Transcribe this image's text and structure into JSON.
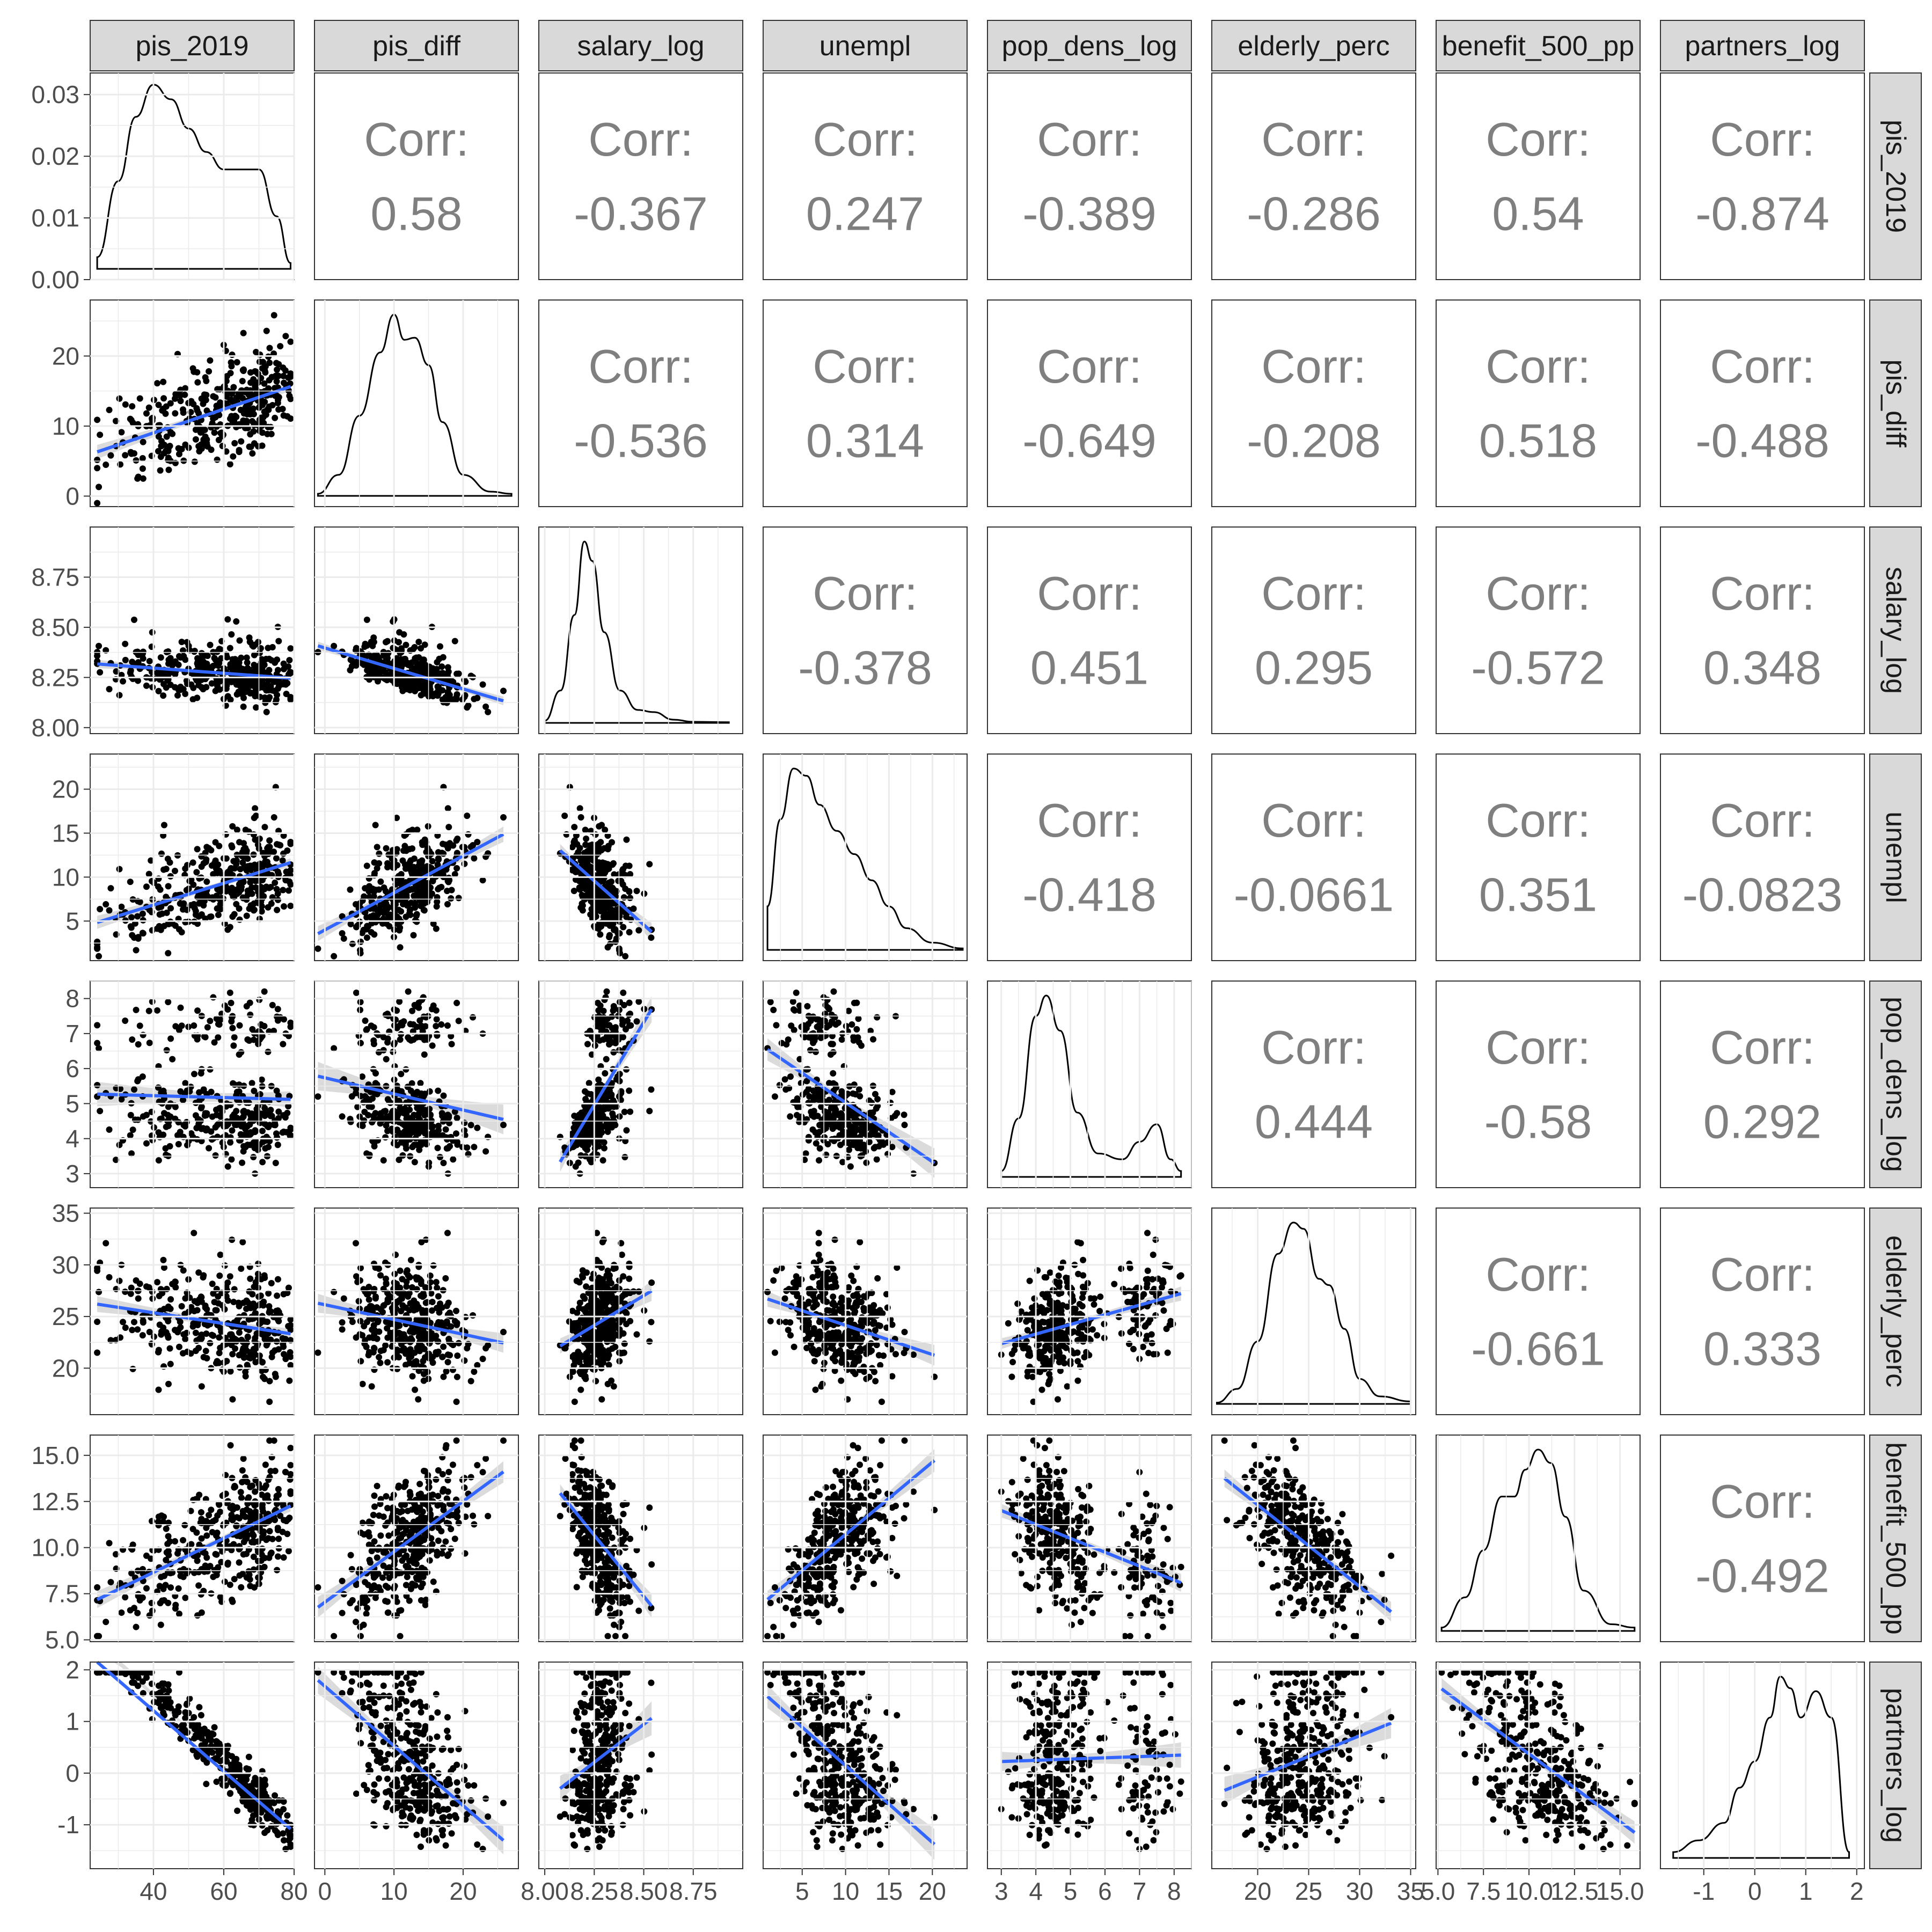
{
  "chart_data": {
    "type": "scatter",
    "variables": [
      "pis_2019",
      "pis_diff",
      "salary_log",
      "unempl",
      "pop_dens_log",
      "elderly_perc",
      "benefit_500_pp",
      "partners_log"
    ],
    "corr_label": "Corr:",
    "correlations": [
      {
        "row": "pis_2019",
        "col": "pis_diff",
        "value": "0.58"
      },
      {
        "row": "pis_2019",
        "col": "salary_log",
        "value": "-0.367"
      },
      {
        "row": "pis_2019",
        "col": "unempl",
        "value": "0.247"
      },
      {
        "row": "pis_2019",
        "col": "pop_dens_log",
        "value": "-0.389"
      },
      {
        "row": "pis_2019",
        "col": "elderly_perc",
        "value": "-0.286"
      },
      {
        "row": "pis_2019",
        "col": "benefit_500_pp",
        "value": "0.54"
      },
      {
        "row": "pis_2019",
        "col": "partners_log",
        "value": "-0.874"
      },
      {
        "row": "pis_diff",
        "col": "salary_log",
        "value": "-0.536"
      },
      {
        "row": "pis_diff",
        "col": "unempl",
        "value": "0.314"
      },
      {
        "row": "pis_diff",
        "col": "pop_dens_log",
        "value": "-0.649"
      },
      {
        "row": "pis_diff",
        "col": "elderly_perc",
        "value": "-0.208"
      },
      {
        "row": "pis_diff",
        "col": "benefit_500_pp",
        "value": "0.518"
      },
      {
        "row": "pis_diff",
        "col": "partners_log",
        "value": "-0.488"
      },
      {
        "row": "salary_log",
        "col": "unempl",
        "value": "-0.378"
      },
      {
        "row": "salary_log",
        "col": "pop_dens_log",
        "value": "0.451"
      },
      {
        "row": "salary_log",
        "col": "elderly_perc",
        "value": "0.295"
      },
      {
        "row": "salary_log",
        "col": "benefit_500_pp",
        "value": "-0.572"
      },
      {
        "row": "salary_log",
        "col": "partners_log",
        "value": "0.348"
      },
      {
        "row": "unempl",
        "col": "pop_dens_log",
        "value": "-0.418"
      },
      {
        "row": "unempl",
        "col": "elderly_perc",
        "value": "-0.0661"
      },
      {
        "row": "unempl",
        "col": "benefit_500_pp",
        "value": "0.351"
      },
      {
        "row": "unempl",
        "col": "partners_log",
        "value": "-0.0823"
      },
      {
        "row": "pop_dens_log",
        "col": "elderly_perc",
        "value": "0.444"
      },
      {
        "row": "pop_dens_log",
        "col": "benefit_500_pp",
        "value": "-0.58"
      },
      {
        "row": "pop_dens_log",
        "col": "partners_log",
        "value": "0.292"
      },
      {
        "row": "elderly_perc",
        "col": "benefit_500_pp",
        "value": "-0.661"
      },
      {
        "row": "elderly_perc",
        "col": "partners_log",
        "value": "0.333"
      },
      {
        "row": "benefit_500_pp",
        "col": "partners_log",
        "value": "-0.492"
      }
    ],
    "x_axes": [
      {
        "var": "pis_2019",
        "range": [
          22,
          80
        ],
        "ticks": [
          40,
          60,
          80
        ],
        "tick_labels": [
          "40",
          "60",
          "80"
        ]
      },
      {
        "var": "pis_diff",
        "range": [
          -1.5,
          28
        ],
        "ticks": [
          0,
          10,
          20
        ],
        "tick_labels": [
          "0",
          "10",
          "20"
        ]
      },
      {
        "var": "salary_log",
        "range": [
          7.97,
          9.0
        ],
        "ticks": [
          8.0,
          8.25,
          8.5,
          8.75
        ],
        "tick_labels": [
          "8.00",
          "8.25",
          "8.50",
          "8.75"
        ]
      },
      {
        "var": "unempl",
        "range": [
          0.5,
          24
        ],
        "ticks": [
          5,
          10,
          15,
          20
        ],
        "tick_labels": [
          "5",
          "10",
          "15",
          "20"
        ]
      },
      {
        "var": "pop_dens_log",
        "range": [
          2.6,
          8.5
        ],
        "ticks": [
          3,
          4,
          5,
          6,
          7,
          8
        ],
        "tick_labels": [
          "3",
          "4",
          "5",
          "6",
          "7",
          "8"
        ]
      },
      {
        "var": "elderly_perc",
        "range": [
          15.5,
          35.5
        ],
        "ticks": [
          20,
          25,
          30,
          35
        ],
        "tick_labels": [
          "20",
          "25",
          "30",
          "35"
        ]
      },
      {
        "var": "benefit_500_pp",
        "range": [
          4.9,
          16.1
        ],
        "ticks": [
          5.0,
          7.5,
          10.0,
          12.5,
          15.0
        ],
        "tick_labels": [
          "5.0",
          "7.5",
          "10.0",
          "12.5",
          "15.0"
        ]
      },
      {
        "var": "partners_log",
        "range": [
          -1.85,
          2.15
        ],
        "ticks": [
          -1,
          0,
          1,
          2
        ],
        "tick_labels": [
          "-1",
          "0",
          "1",
          "2"
        ]
      }
    ],
    "y_axes": [
      {
        "var": "pis_2019",
        "range": [
          0,
          0.0335
        ],
        "ticks": [
          0.0,
          0.01,
          0.02,
          0.03
        ],
        "tick_labels": [
          "0.00",
          "0.01",
          "0.02",
          "0.03"
        ]
      },
      {
        "var": "pis_diff",
        "range": [
          -1.5,
          28
        ],
        "ticks": [
          0,
          10,
          20
        ],
        "tick_labels": [
          "0",
          "10",
          "20"
        ]
      },
      {
        "var": "salary_log",
        "range": [
          7.97,
          9.0
        ],
        "ticks": [
          8.0,
          8.25,
          8.5,
          8.75
        ],
        "tick_labels": [
          "8.00",
          "8.25",
          "8.50",
          "8.75"
        ]
      },
      {
        "var": "unempl",
        "range": [
          0.5,
          24
        ],
        "ticks": [
          5,
          10,
          15,
          20
        ],
        "tick_labels": [
          "5",
          "10",
          "15",
          "20"
        ]
      },
      {
        "var": "pop_dens_log",
        "range": [
          2.6,
          8.5
        ],
        "ticks": [
          3,
          4,
          5,
          6,
          7,
          8
        ],
        "tick_labels": [
          "3",
          "4",
          "5",
          "6",
          "7",
          "8"
        ]
      },
      {
        "var": "elderly_perc",
        "range": [
          15.5,
          35.5
        ],
        "ticks": [
          20,
          25,
          30,
          35
        ],
        "tick_labels": [
          "20",
          "25",
          "30",
          "35"
        ]
      },
      {
        "var": "benefit_500_pp",
        "range": [
          4.9,
          16.1
        ],
        "ticks": [
          5.0,
          7.5,
          10.0,
          12.5,
          15.0
        ],
        "tick_labels": [
          "5.0",
          "7.5",
          "10.0",
          "12.5",
          "15.0"
        ]
      },
      {
        "var": "partners_log",
        "range": [
          -1.85,
          2.15
        ],
        "ticks": [
          -1,
          0,
          1,
          2
        ],
        "tick_labels": [
          "-1",
          "0",
          "1",
          "2"
        ]
      }
    ],
    "densities": [
      {
        "var": "pis_2019",
        "x": [
          24,
          30,
          35,
          40,
          45,
          50,
          55,
          60,
          65,
          70,
          75,
          79
        ],
        "y": [
          0.002,
          0.015,
          0.026,
          0.0315,
          0.029,
          0.024,
          0.02,
          0.017,
          0.017,
          0.017,
          0.009,
          0.001
        ]
      },
      {
        "var": "pis_diff",
        "x": [
          -1,
          2,
          5,
          8,
          10,
          11.5,
          13,
          15,
          17,
          20,
          24,
          27
        ],
        "y": [
          0.001,
          0.01,
          0.038,
          0.068,
          0.086,
          0.074,
          0.075,
          0.062,
          0.035,
          0.01,
          0.002,
          0.001
        ]
      },
      {
        "var": "salary_log",
        "x": [
          8.0,
          8.08,
          8.15,
          8.2,
          8.24,
          8.3,
          8.38,
          8.47,
          8.55,
          8.65,
          8.75,
          8.93
        ],
        "y": [
          0.1,
          1.5,
          5.0,
          8.4,
          7.5,
          4.2,
          1.5,
          0.6,
          0.5,
          0.15,
          0.05,
          0.03
        ]
      },
      {
        "var": "unempl",
        "x": [
          1,
          2.5,
          4,
          5.5,
          7,
          9,
          11,
          13,
          15,
          17,
          20,
          23.5
        ],
        "y": [
          0.03,
          0.09,
          0.125,
          0.12,
          0.1,
          0.082,
          0.066,
          0.048,
          0.03,
          0.015,
          0.005,
          0.001
        ]
      },
      {
        "var": "pop_dens_log",
        "x": [
          3.0,
          3.5,
          4.0,
          4.3,
          4.7,
          5.2,
          5.8,
          6.5,
          7.0,
          7.5,
          7.9,
          8.2
        ],
        "y": [
          0.02,
          0.2,
          0.55,
          0.62,
          0.5,
          0.22,
          0.08,
          0.06,
          0.12,
          0.18,
          0.06,
          0.02
        ]
      },
      {
        "var": "elderly_perc",
        "x": [
          16,
          18,
          20,
          22,
          23.5,
          24.5,
          26,
          27,
          28.5,
          30,
          32,
          35
        ],
        "y": [
          0.001,
          0.012,
          0.05,
          0.12,
          0.145,
          0.14,
          0.1,
          0.095,
          0.06,
          0.02,
          0.006,
          0.002
        ]
      },
      {
        "var": "benefit_500_pp",
        "x": [
          5.2,
          6.5,
          7.5,
          8.5,
          9.2,
          9.8,
          10.5,
          11.2,
          12,
          13,
          14.5,
          15.8
        ],
        "y": [
          0.005,
          0.05,
          0.12,
          0.2,
          0.2,
          0.24,
          0.27,
          0.25,
          0.17,
          0.06,
          0.01,
          0.005
        ]
      },
      {
        "var": "partners_log",
        "x": [
          -1.6,
          -1.1,
          -0.6,
          -0.3,
          0,
          0.3,
          0.5,
          0.7,
          0.9,
          1.2,
          1.5,
          1.85
        ],
        "y": [
          0.02,
          0.06,
          0.12,
          0.24,
          0.33,
          0.48,
          0.62,
          0.58,
          0.48,
          0.57,
          0.48,
          0.02
        ]
      }
    ],
    "smooth_method": "linear fit with confidence band",
    "point_color": "#000000",
    "line_color": "#3366ff",
    "band_color": "#cccccc",
    "strip_fill": "#d9d9d9",
    "grid_color": "#ebebeb",
    "corr_color": "#7f7f7f"
  }
}
